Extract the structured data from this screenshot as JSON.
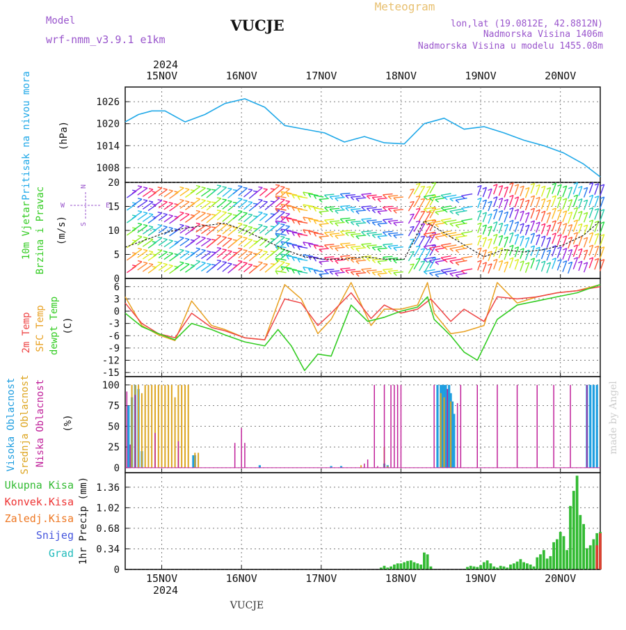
{
  "header": {
    "model_label": "Model",
    "model_name": "wrf-nmm_v3.9.1  e1km",
    "station": "VUCJE",
    "app_title": "Meteogram",
    "lonlat": "lon,lat (19.0812E, 42.8812N)",
    "elev": "Nadmorska Visina 1406m",
    "elev_model": "Nadmorska Visina u modelu 1455.08m",
    "footer_station": "VUCJE",
    "credit": "made by Angel"
  },
  "colors": {
    "pressure": "#1fa8e8",
    "temp2m": "#ee4444",
    "sfc": "#e8a020",
    "dewpt": "#33cc22",
    "high_cloud": "#1f9ee0",
    "mid_cloud": "#dda520",
    "low_cloud": "#c0209a",
    "total_precip": "#33bb33",
    "conv_precip": "#ee3333",
    "freezing": "#ee7722",
    "snow": "#4455dd",
    "hail": "#22bbbb",
    "model_text": "#9955cc",
    "gust_line": "#222222"
  },
  "chart_data": [
    {
      "type": "line",
      "panel": "pressure",
      "ylabel_main": "Pritisak na nivou mora",
      "ylabel_unit": "(hPa)",
      "ylim": [
        1004,
        1030
      ],
      "yticks": [
        1008,
        1014,
        1020,
        1026
      ],
      "grid": true,
      "x_start": "2024-11-14 13:00",
      "x_end": "2024-11-20 12:00",
      "x_top_ticks": [
        "15NOV",
        "16NOV",
        "17NOV",
        "18NOV",
        "19NOV",
        "20NOV"
      ],
      "x_year": "2024",
      "series": [
        {
          "x": [
            0,
            4,
            8,
            12,
            18,
            24,
            30,
            36,
            42,
            48,
            54,
            60,
            66,
            72,
            78,
            84,
            90,
            96,
            102,
            108,
            114,
            120,
            126,
            132,
            138,
            143
          ],
          "values": [
            1020.5,
            1022.5,
            1023.5,
            1023.5,
            1020.5,
            1022.5,
            1025.5,
            1026.8,
            1024.5,
            1019.5,
            1018.5,
            1017.5,
            1015,
            1016.5,
            1014.8,
            1014.5,
            1020,
            1021.5,
            1018.5,
            1019.2,
            1017.5,
            1015.5,
            1014,
            1012,
            1009,
            1005.5
          ]
        }
      ]
    },
    {
      "type": "line",
      "panel": "wind",
      "ylabel_main": "10m Vjetar Brzina i Pravac",
      "ylabel_unit": "(m/s)",
      "compass": [
        "N",
        "E",
        "S",
        "W"
      ],
      "ylim": [
        0,
        20
      ],
      "yticks": [
        0,
        5,
        10,
        15,
        20
      ],
      "grid": true,
      "series": [
        {
          "x": [
            0,
            6,
            12,
            18,
            24,
            30,
            36,
            42,
            48,
            54,
            60,
            66,
            72,
            78,
            84,
            90,
            96,
            102,
            108,
            114,
            120,
            126,
            132,
            138,
            143
          ],
          "values": [
            6.5,
            8,
            9.5,
            10.5,
            11,
            11.5,
            10,
            8,
            6,
            4.5,
            4,
            4,
            4.5,
            4,
            4,
            12,
            9.5,
            7,
            4.5,
            6,
            5.5,
            6,
            7,
            9,
            12
          ]
        }
      ]
    },
    {
      "type": "line",
      "panel": "temperature",
      "ylabel_lines": [
        "2m Temp",
        "SFC Temp",
        "dewpt Temp"
      ],
      "ylabel_unit": "(C)",
      "ylim": [
        -16,
        8
      ],
      "yticks": [
        -15,
        -12,
        -9,
        -6,
        -3,
        0,
        3,
        6
      ],
      "grid": true,
      "series": [
        {
          "name": "2m Temp",
          "x": [
            0,
            5,
            10,
            15,
            20,
            26,
            30,
            36,
            42,
            48,
            53,
            58,
            62,
            68,
            74,
            78,
            83,
            88,
            92,
            98,
            102,
            108,
            112,
            118,
            124,
            130,
            136,
            143
          ],
          "values": [
            2,
            -3,
            -5.5,
            -6.5,
            -0.5,
            -4,
            -4.8,
            -6.5,
            -7,
            3,
            2,
            -3.5,
            -0.5,
            4.5,
            -1.8,
            1.5,
            -0.5,
            0.5,
            3,
            -2.5,
            0.5,
            -2.5,
            3.5,
            3,
            3.5,
            4.5,
            5,
            6
          ]
        },
        {
          "name": "SFC Temp",
          "x": [
            0,
            5,
            10,
            15,
            20,
            26,
            30,
            36,
            42,
            48,
            53,
            58,
            62,
            68,
            74,
            78,
            83,
            88,
            91,
            93,
            98,
            102,
            108,
            112,
            118,
            124,
            130,
            136,
            143
          ],
          "values": [
            3.5,
            -3.5,
            -5.8,
            -7.2,
            2.5,
            -3.5,
            -4.5,
            -6.5,
            -7,
            6.5,
            3,
            -5.5,
            -2,
            7,
            -3.5,
            0.5,
            0.5,
            1.5,
            7,
            -0.5,
            -5.5,
            -5,
            -3.5,
            7,
            2,
            3.5,
            4.5,
            5,
            6.5
          ]
        },
        {
          "name": "dewpt Temp",
          "x": [
            0,
            5,
            10,
            15,
            20,
            26,
            30,
            36,
            42,
            46,
            50,
            54,
            58,
            62,
            68,
            73,
            78,
            83,
            88,
            91,
            93,
            98,
            102,
            106,
            112,
            118,
            124,
            130,
            136,
            143
          ],
          "values": [
            -0.5,
            -3.8,
            -5.5,
            -7,
            -3,
            -4.5,
            -5.8,
            -7.5,
            -8.5,
            -4.5,
            -8.5,
            -14.5,
            -10.5,
            -11,
            1.5,
            -2.5,
            -1.5,
            0,
            1,
            3.5,
            -2,
            -6,
            -10,
            -12,
            -2,
            1.5,
            2.5,
            3.5,
            4.5,
            6.5
          ]
        }
      ]
    },
    {
      "type": "bar",
      "panel": "clouds",
      "ylabel_lines": [
        "Visoka Oblacnost",
        "Srednja Oblacnost",
        "Niska Oblacnost"
      ],
      "ylabel_unit": "(%)",
      "ylim": [
        0,
        100
      ],
      "yticks": [
        0,
        25,
        50,
        75,
        100
      ],
      "grid": true,
      "series": [
        {
          "name": "Visoka Oblacnost",
          "x": [
            1,
            2,
            3,
            4,
            5,
            20.5,
            21,
            40.5,
            62,
            65,
            78,
            79,
            94,
            95,
            95.5,
            96,
            96.5,
            97,
            97.5,
            98,
            98.5,
            99,
            139,
            140,
            141,
            142
          ],
          "values": [
            75,
            85,
            100,
            95,
            20,
            15,
            15,
            3,
            2,
            2,
            5,
            3,
            100,
            100,
            100,
            100,
            100,
            95,
            100,
            90,
            80,
            65,
            100,
            100,
            100,
            100
          ]
        },
        {
          "name": "Srednja Oblacnost",
          "x": [
            2,
            3,
            4,
            5,
            6,
            7,
            8,
            9,
            10,
            11,
            12,
            13,
            14,
            15,
            16,
            17,
            18,
            19,
            21,
            22,
            71,
            78,
            79,
            95,
            96,
            98
          ],
          "values": [
            100,
            100,
            100,
            90,
            100,
            100,
            100,
            100,
            100,
            100,
            100,
            100,
            100,
            85,
            100,
            100,
            100,
            100,
            18,
            18,
            3,
            25,
            2,
            90,
            85,
            80
          ]
        },
        {
          "name": "Niska Oblacnost",
          "x": [
            0.5,
            1.5,
            3,
            9,
            16,
            33,
            35,
            36,
            72,
            73,
            75,
            76,
            78,
            80,
            81,
            82,
            83,
            93,
            97,
            100,
            101,
            106,
            112,
            118,
            124,
            129,
            134,
            139
          ],
          "values": [
            92,
            28,
            88,
            42,
            32,
            30,
            48,
            30,
            5,
            10,
            100,
            2,
            100,
            100,
            100,
            100,
            100,
            100,
            95,
            78,
            100,
            100,
            100,
            100,
            100,
            100,
            100,
            100
          ]
        }
      ]
    },
    {
      "type": "bar",
      "panel": "precip",
      "ylabel_main": "1hr Precip (mm)",
      "ylim": [
        0,
        1.6
      ],
      "yticks": [
        0,
        0.34,
        0.68,
        1.02,
        1.36
      ],
      "grid": true,
      "legend": [
        "Ukupna Kisa",
        "Konvek.Kisa",
        "Zaledj.Kisa",
        "Snijeg",
        "Grad"
      ],
      "x_bottom_ticks": [
        "15NOV",
        "16NOV",
        "17NOV",
        "18NOV",
        "19NOV",
        "20NOV"
      ],
      "x_year": "2024",
      "series": [
        {
          "name": "Ukupna Kisa",
          "x": [
            77,
            78,
            79,
            80,
            81,
            82,
            83,
            84,
            85,
            86,
            87,
            88,
            89,
            90,
            91,
            92,
            103,
            104,
            105,
            106,
            107,
            108,
            109,
            110,
            111,
            112,
            113,
            114,
            115,
            116,
            117,
            118,
            119,
            120,
            121,
            122,
            123,
            124,
            125,
            126,
            127,
            128,
            129,
            130,
            131,
            132,
            133,
            134,
            135,
            136,
            137,
            138,
            139,
            140,
            141,
            142,
            143
          ],
          "values": [
            0.03,
            0.06,
            0.03,
            0.05,
            0.08,
            0.1,
            0.1,
            0.12,
            0.14,
            0.15,
            0.12,
            0.1,
            0.08,
            0.28,
            0.25,
            0.05,
            0.04,
            0.06,
            0.05,
            0.04,
            0.07,
            0.12,
            0.15,
            0.1,
            0.05,
            0.03,
            0.06,
            0.05,
            0.03,
            0.08,
            0.1,
            0.13,
            0.17,
            0.12,
            0.1,
            0.08,
            0.05,
            0.2,
            0.25,
            0.32,
            0.18,
            0.22,
            0.45,
            0.5,
            0.62,
            0.55,
            0.32,
            1.05,
            1.3,
            1.55,
            0.9,
            0.75,
            0.35,
            0.4,
            0.5,
            0.6,
            0.62
          ]
        },
        {
          "name": "Konvek.Kisa",
          "x": [
            142,
            143
          ],
          "values": [
            0.4,
            0.6
          ]
        }
      ]
    }
  ]
}
